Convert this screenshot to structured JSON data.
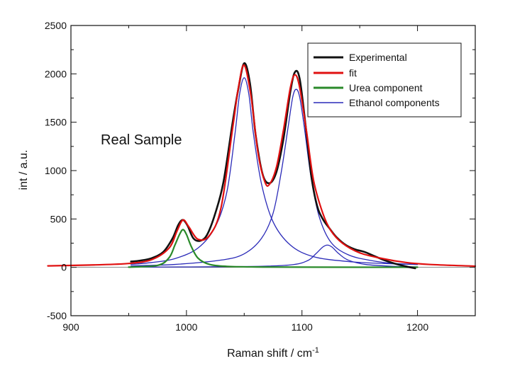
{
  "chart_data": {
    "type": "line",
    "annotation": "Real Sample",
    "xlabel_main": "Raman shift / cm",
    "xlabel_sup": "-1",
    "ylabel": "int / a.u.",
    "xlim": [
      900,
      1250
    ],
    "ylim": [
      -500,
      2500
    ],
    "xticks": [
      900,
      1000,
      1100,
      1200
    ],
    "yticks": [
      -500,
      0,
      500,
      1000,
      1500,
      2000,
      2500
    ],
    "legend_position": "top-right",
    "legend": [
      "Experimental",
      "fit",
      "Urea component",
      "Ethanol components"
    ],
    "colors": {
      "experimental": "#111111",
      "fit": "#e01010",
      "urea": "#2a8a2a",
      "ethanol": "#2a2ab8"
    },
    "series": [
      {
        "name": "Experimental",
        "x": [
          952,
          960,
          970,
          980,
          988,
          993,
          997,
          1001,
          1006,
          1012,
          1018,
          1025,
          1032,
          1040,
          1045,
          1050,
          1055,
          1060,
          1066,
          1072,
          1078,
          1084,
          1090,
          1094,
          1098,
          1103,
          1108,
          1113,
          1118,
          1124,
          1130,
          1138,
          1146,
          1154,
          1162,
          1170,
          1180,
          1190,
          1198
        ],
        "y": [
          60,
          70,
          95,
          160,
          300,
          440,
          490,
          430,
          300,
          275,
          340,
          560,
          880,
          1500,
          1850,
          2110,
          1900,
          1360,
          960,
          870,
          990,
          1330,
          1820,
          2020,
          1950,
          1480,
          950,
          640,
          500,
          400,
          310,
          230,
          185,
          160,
          120,
          80,
          40,
          10,
          -10
        ]
      },
      {
        "name": "fit",
        "x": [
          880,
          920,
          950,
          970,
          985,
          992,
          997,
          1002,
          1010,
          1020,
          1030,
          1040,
          1045,
          1050,
          1056,
          1062,
          1068,
          1072,
          1078,
          1084,
          1090,
          1094,
          1098,
          1104,
          1110,
          1118,
          1125,
          1135,
          1150,
          1170,
          1190,
          1210,
          1250
        ],
        "y": [
          15,
          25,
          40,
          80,
          200,
          380,
          490,
          420,
          290,
          330,
          620,
          1440,
          1860,
          2090,
          1760,
          1180,
          880,
          860,
          1040,
          1420,
          1860,
          1990,
          1860,
          1400,
          900,
          560,
          380,
          250,
          150,
          90,
          50,
          30,
          12
        ]
      },
      {
        "name": "Urea component",
        "x": [
          950,
          975,
          985,
          990,
          994,
          997,
          1000,
          1004,
          1010,
          1020,
          1035,
          1060,
          1100,
          1200
        ],
        "y": [
          2,
          20,
          100,
          230,
          340,
          390,
          340,
          220,
          95,
          30,
          10,
          4,
          2,
          1
        ]
      },
      {
        "name": "Ethanol components",
        "x": [
          952,
          970,
          990,
          1010,
          1025,
          1035,
          1042,
          1046,
          1050,
          1054,
          1058,
          1065,
          1075,
          1090,
          1110,
          1140,
          1170,
          1200
        ],
        "y": [
          30,
          50,
          90,
          200,
          420,
          780,
          1380,
          1790,
          1960,
          1790,
          1380,
          860,
          470,
          230,
          110,
          60,
          40,
          30
        ]
      },
      {
        "name": "Ethanol components",
        "x": [
          952,
          990,
          1030,
          1050,
          1065,
          1075,
          1082,
          1088,
          1092,
          1095,
          1098,
          1102,
          1108,
          1115,
          1125,
          1140,
          1160,
          1180,
          1200
        ],
        "y": [
          15,
          30,
          75,
          140,
          300,
          560,
          980,
          1450,
          1760,
          1840,
          1760,
          1450,
          920,
          520,
          260,
          130,
          70,
          40,
          30
        ]
      },
      {
        "name": "Ethanol components",
        "x": [
          952,
          1050,
          1090,
          1105,
          1112,
          1118,
          1122,
          1126,
          1132,
          1140,
          1155,
          1180,
          1200
        ],
        "y": [
          2,
          8,
          25,
          70,
          140,
          210,
          230,
          210,
          140,
          75,
          30,
          10,
          5
        ]
      }
    ]
  }
}
